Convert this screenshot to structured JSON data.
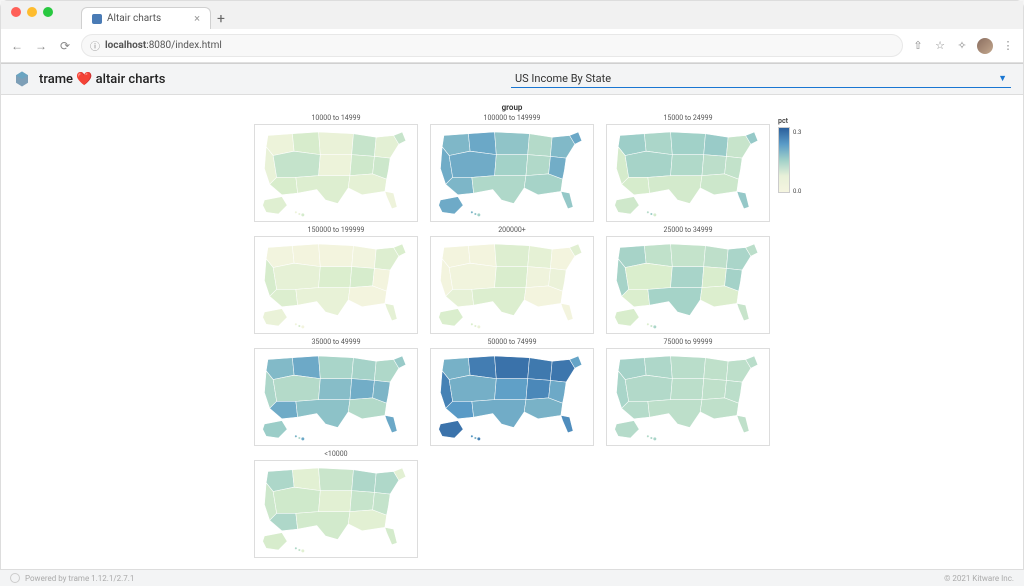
{
  "browser": {
    "tab_title": "Altair charts",
    "url_host": "localhost",
    "url_port": "8080",
    "url_path": "/index.html"
  },
  "header": {
    "app_title": "trame ❤️ altair charts",
    "dropdown_selected": "US Income By State"
  },
  "chart": {
    "facet_label": "group",
    "legend_title": "pct",
    "legend_max": "0.3",
    "legend_min": "0.0",
    "color_scale": {
      "low": "#f5f5e0",
      "mid_low": "#d8edcc",
      "mid": "#a0d0c8",
      "mid_high": "#5a9bc7",
      "high": "#2b5f9c"
    },
    "facets": [
      {
        "label": "10000 to 14999",
        "intensity": 0.2
      },
      {
        "label": "100000 to 149999",
        "intensity": 0.55
      },
      {
        "label": "15000 to 24999",
        "intensity": 0.4
      },
      {
        "label": "150000 to 199999",
        "intensity": 0.12
      },
      {
        "label": "200000+",
        "intensity": 0.1
      },
      {
        "label": "25000 to 34999",
        "intensity": 0.35
      },
      {
        "label": "35000 to 49999",
        "intensity": 0.55
      },
      {
        "label": "50000 to 74999",
        "intensity": 0.78
      },
      {
        "label": "75000 to 99999",
        "intensity": 0.5
      },
      {
        "label": "<10000",
        "intensity": 0.3
      }
    ],
    "border_color": "#dddddd"
  },
  "footer": {
    "left_text": "Powered by trame 1.12.1/2.7.1",
    "right_text": "© 2021 Kitware Inc."
  }
}
